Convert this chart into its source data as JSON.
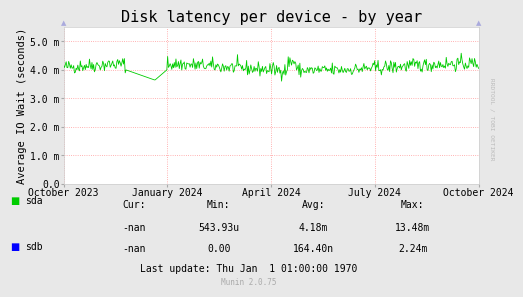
{
  "title": "Disk latency per device - by year",
  "ylabel": "Average IO Wait (seconds)",
  "background_color": "#e8e8e8",
  "plot_bg_color": "#ffffff",
  "grid_color": "#ff9999",
  "ylim": [
    0.0,
    0.0055
  ],
  "yticks": [
    0.0,
    0.001,
    0.002,
    0.003,
    0.004,
    0.005
  ],
  "ytick_labels": [
    "0.0",
    "1.0 m",
    "2.0 m",
    "3.0 m",
    "4.0 m",
    "5.0 m"
  ],
  "xtick_labels": [
    "October 2023",
    "January 2024",
    "April 2024",
    "July 2024",
    "October 2024"
  ],
  "sda_color": "#00cc00",
  "sdb_color": "#0000ff",
  "footer_text": "Munin 2.0.75",
  "table_headers": [
    "Cur:",
    "Min:",
    "Avg:",
    "Max:"
  ],
  "sda_stats": [
    "-nan",
    "543.93u",
    "4.18m",
    "13.48m"
  ],
  "sdb_stats": [
    "-nan",
    "0.00",
    "164.40n",
    "2.24m"
  ],
  "last_update": "Last update: Thu Jan  1 01:00:00 1970",
  "right_label": "RRDTOOL / TOBI OETIKER",
  "title_fontsize": 11,
  "axis_fontsize": 7.5,
  "tick_fontsize": 7,
  "table_fontsize": 7
}
